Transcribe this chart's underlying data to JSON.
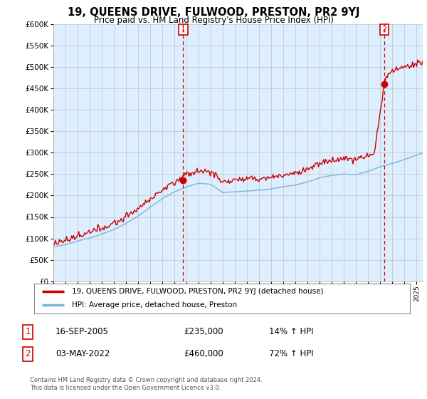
{
  "title": "19, QUEENS DRIVE, FULWOOD, PRESTON, PR2 9YJ",
  "subtitle": "Price paid vs. HM Land Registry's House Price Index (HPI)",
  "ylim": [
    0,
    600000
  ],
  "yticks": [
    0,
    50000,
    100000,
    150000,
    200000,
    250000,
    300000,
    350000,
    400000,
    450000,
    500000,
    550000,
    600000
  ],
  "xlim_start": 1995.0,
  "xlim_end": 2025.5,
  "sale1_x": 2005.71,
  "sale1_y": 235000,
  "sale1_label": "1",
  "sale2_x": 2022.33,
  "sale2_y": 460000,
  "sale2_label": "2",
  "hpi_color": "#7ab5d8",
  "price_color": "#cc0000",
  "vline_color": "#cc0000",
  "bg_fill_color": "#ddeeff",
  "legend_entry1": "19, QUEENS DRIVE, FULWOOD, PRESTON, PR2 9YJ (detached house)",
  "legend_entry2": "HPI: Average price, detached house, Preston",
  "table_row1": [
    "1",
    "16-SEP-2005",
    "£235,000",
    "14% ↑ HPI"
  ],
  "table_row2": [
    "2",
    "03-MAY-2022",
    "£460,000",
    "72% ↑ HPI"
  ],
  "footer": "Contains HM Land Registry data © Crown copyright and database right 2024.\nThis data is licensed under the Open Government Licence v3.0.",
  "background_color": "#ffffff",
  "grid_color": "#c8c8c8"
}
